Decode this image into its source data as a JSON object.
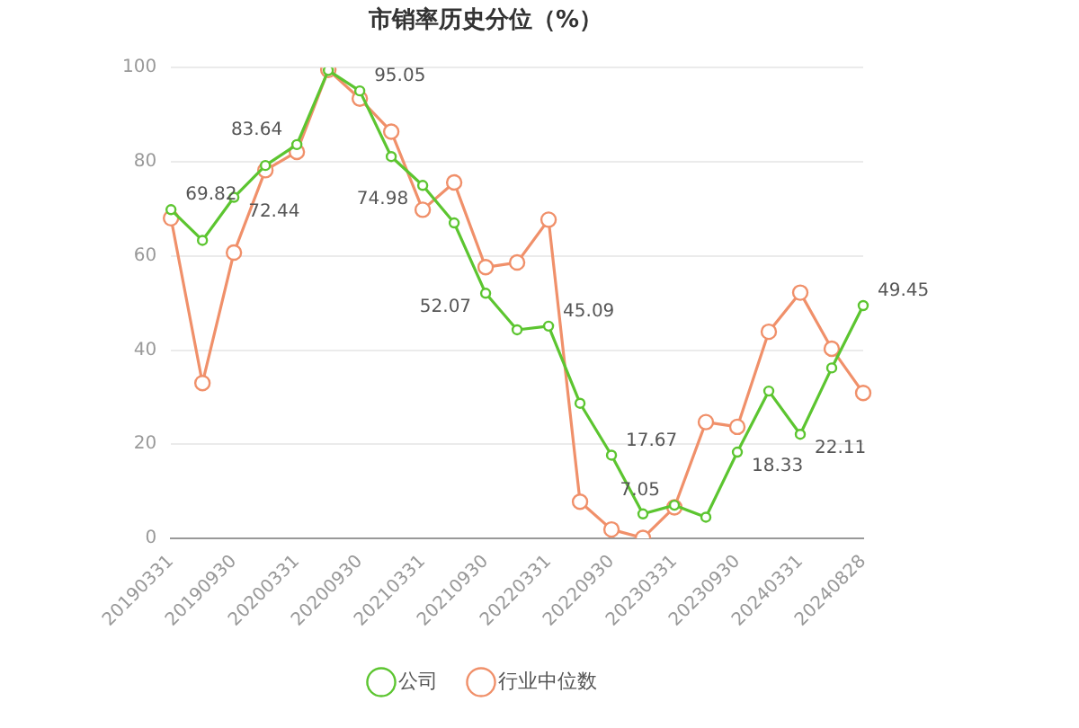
{
  "chart_data": {
    "type": "line",
    "title": "市销率历史分位（%）",
    "categories": [
      "20190331",
      null,
      "20190930",
      null,
      "20200331",
      null,
      "20200930",
      null,
      "20210331",
      null,
      "20210930",
      null,
      "20220331",
      null,
      "20220930",
      null,
      "20230331",
      null,
      "20230930",
      null,
      "20240331",
      null,
      "20240828"
    ],
    "series": [
      {
        "name": "公司",
        "color": "#5cc530",
        "values": [
          69.82,
          63.3,
          72.44,
          79.2,
          83.64,
          99.4,
          95.05,
          81.1,
          74.98,
          67.0,
          52.07,
          44.3,
          45.09,
          28.7,
          17.67,
          5.2,
          7.05,
          4.5,
          18.33,
          31.3,
          22.11,
          36.2,
          49.45
        ],
        "value_labels": [
          "69.82",
          null,
          "72.44",
          null,
          "83.64",
          null,
          "95.05",
          null,
          "74.98",
          null,
          "52.07",
          null,
          "45.09",
          null,
          "17.67",
          null,
          "7.05",
          null,
          "18.33",
          null,
          "22.11",
          null,
          "49.45"
        ]
      },
      {
        "name": "行业中位数",
        "color": "#f0906a",
        "values": [
          68.0,
          33.0,
          60.7,
          78.2,
          82.1,
          99.5,
          93.4,
          86.4,
          69.8,
          75.6,
          57.6,
          58.6,
          67.7,
          7.8,
          1.9,
          0.1,
          6.6,
          24.7,
          23.7,
          43.9,
          52.2,
          40.3,
          30.9
        ]
      }
    ],
    "ylim": [
      0,
      100
    ],
    "yticks": [
      0,
      20,
      40,
      60,
      80,
      100
    ],
    "grid": "y",
    "legend": "bottom",
    "marker": "circle",
    "line_style": "solid"
  }
}
